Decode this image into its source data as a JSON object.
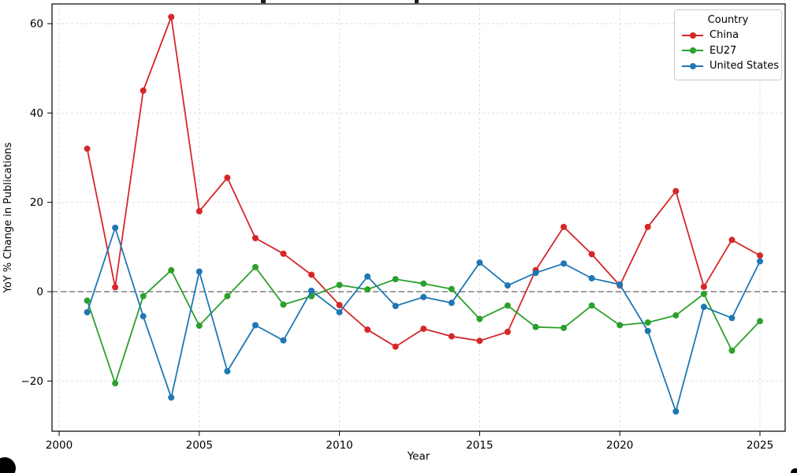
{
  "figure": {
    "xlabel": "Year",
    "ylabel": "YoY % Change in Publications",
    "x_ticks": [
      {
        "value": 2000,
        "label": "2000"
      },
      {
        "value": 2005,
        "label": "2005"
      },
      {
        "value": 2010,
        "label": "2010"
      },
      {
        "value": 2015,
        "label": "2015"
      },
      {
        "value": 2020,
        "label": "2020"
      },
      {
        "value": 2025,
        "label": "2025"
      }
    ],
    "y_ticks": [
      {
        "value": 60,
        "label": "60"
      },
      {
        "value": 40,
        "label": "40"
      },
      {
        "value": 20,
        "label": "20"
      },
      {
        "value": 0,
        "label": "0"
      },
      {
        "value": -20,
        "label": "−20"
      }
    ],
    "legend": {
      "title": "Country",
      "entries": [
        "China",
        "EU27",
        "United States"
      ]
    },
    "colors": {
      "grid": "#d9d9d9",
      "zero_line": "#7f7f7f",
      "spine": "#000000",
      "text": "#000000"
    }
  },
  "chart_data": {
    "type": "line",
    "xlabel": "Year",
    "ylabel": "YoY % Change in Publications",
    "x": [
      2001,
      2002,
      2003,
      2004,
      2005,
      2006,
      2007,
      2008,
      2009,
      2010,
      2011,
      2012,
      2013,
      2014,
      2015,
      2016,
      2017,
      2018,
      2019,
      2020,
      2021,
      2022,
      2023,
      2024,
      2025
    ],
    "series": [
      {
        "name": "China",
        "color": "#d62728",
        "values": [
          32.0,
          1.0,
          45.0,
          61.5,
          18.0,
          25.5,
          12.0,
          8.5,
          3.8,
          -3.0,
          -8.5,
          -12.3,
          -8.3,
          -10.0,
          -11.0,
          -9.0,
          4.8,
          14.5,
          8.4,
          1.4,
          14.5,
          22.5,
          1.1,
          11.6,
          8.1
        ]
      },
      {
        "name": "EU27",
        "color": "#2ca02c",
        "values": [
          -2.0,
          -20.5,
          -1.0,
          4.8,
          -7.6,
          -1.0,
          5.5,
          -2.9,
          -1.0,
          1.5,
          0.5,
          2.8,
          1.8,
          0.6,
          -6.1,
          -3.1,
          -7.9,
          -8.1,
          -3.1,
          -7.5,
          -6.9,
          -5.3,
          -0.5,
          -13.2,
          -6.6
        ]
      },
      {
        "name": "United States",
        "color": "#1f77b4",
        "values": [
          -4.6,
          14.3,
          -5.5,
          -23.7,
          4.5,
          -17.8,
          -7.5,
          -10.9,
          0.2,
          -4.6,
          3.4,
          -3.2,
          -1.2,
          -2.5,
          6.5,
          1.4,
          4.2,
          6.3,
          3.0,
          1.6,
          -8.8,
          -26.8,
          -3.4,
          -5.9,
          6.8
        ]
      }
    ],
    "ylim": [
      -31.2,
      64.4
    ],
    "xlim": [
      1999.75,
      2025.9
    ],
    "grid": true,
    "grid_style": "dashed",
    "zero_line": true,
    "legend_position": "upper right",
    "legend_title": "Country"
  }
}
